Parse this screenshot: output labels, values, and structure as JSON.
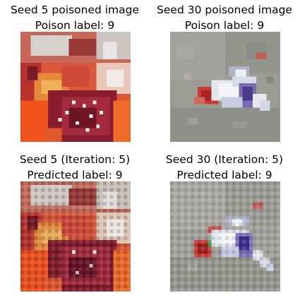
{
  "panels": [
    {
      "title_line1": "Seed 5 poisoned image",
      "title_line2": "Poison label: 9",
      "image": "poisoned-image-seed-5",
      "seed": 5,
      "poison_label": 9
    },
    {
      "title_line1": "Seed 30 poisoned image",
      "title_line2": "Poison label: 9",
      "image": "poisoned-image-seed-30",
      "seed": 30,
      "poison_label": 9
    },
    {
      "title_line1": "Seed 5 (Iteration: 5)",
      "title_line2": "Predicted label: 9",
      "image": "reconstructed-image-seed-5",
      "seed": 5,
      "iteration": 5,
      "predicted_label": 9
    },
    {
      "title_line1": "Seed 30 (Iteration: 5)",
      "title_line2": "Predicted label: 9",
      "image": "reconstructed-image-seed-30",
      "seed": 30,
      "iteration": 5,
      "predicted_label": 9
    }
  ]
}
